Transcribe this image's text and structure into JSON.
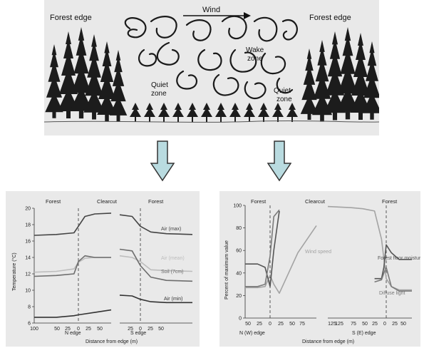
{
  "top": {
    "label_left": "Forest edge",
    "label_right": "Forest edge",
    "wind": "Wind",
    "wake_1": "Wake",
    "wake_2": "zone",
    "quiet_left_1": "Quiet",
    "quiet_left_2": "zone",
    "quiet_right_1": "Quiet",
    "quiet_right_2": "zone"
  },
  "colors": {
    "arrow_fill": "#b9dbe0",
    "arrow_stroke": "#333333"
  },
  "chart_data": [
    {
      "type": "line",
      "region_labels": [
        "Forest",
        "Clearcut",
        "Forest"
      ],
      "ylabel": "Temperature (°C)",
      "xlabel": "Distance from edge (m)",
      "ylim": [
        6,
        20
      ],
      "yticks": [
        "20",
        "18",
        "16",
        "14",
        "12",
        "10",
        "8",
        "6"
      ],
      "xticks_n": [
        "100",
        "50",
        "25",
        "0",
        "25",
        "50"
      ],
      "xticks_s": [
        "25",
        "0",
        "25",
        "50"
      ],
      "edge_n": "N  edge",
      "edge_s": "S  edge",
      "series": [
        {
          "name": "Air (max)",
          "n_x": [
            -100,
            -50,
            -10,
            0,
            10,
            25,
            50
          ],
          "n_y": [
            16.7,
            16.8,
            17.0,
            17.8,
            19.0,
            19.3,
            19.4
          ],
          "s_x": [
            -25,
            -10,
            0,
            10,
            25,
            50
          ],
          "s_y": [
            19.2,
            19.0,
            17.8,
            17.1,
            16.9,
            16.8
          ]
        },
        {
          "name": "Air (mean)",
          "n_x": [
            -100,
            -50,
            -10,
            0,
            10,
            25,
            50
          ],
          "n_y": [
            12.2,
            12.3,
            12.6,
            13.4,
            13.9,
            14.0,
            14.0
          ],
          "s_x": [
            -25,
            -10,
            0,
            10,
            25,
            50
          ],
          "s_y": [
            14.2,
            14.0,
            13.5,
            12.5,
            12.4,
            12.3
          ]
        },
        {
          "name": "Soil (7cm)",
          "n_x": [
            -100,
            -50,
            -10,
            0,
            10,
            25,
            50
          ],
          "n_y": [
            11.7,
            11.8,
            12.0,
            13.5,
            14.2,
            14.0,
            14.0
          ],
          "s_x": [
            -25,
            -10,
            0,
            10,
            25,
            50
          ],
          "s_y": [
            15.0,
            14.8,
            13.0,
            11.6,
            11.2,
            11.1
          ]
        },
        {
          "name": "Air (min)",
          "n_x": [
            -100,
            -50,
            -10,
            0,
            25,
            50
          ],
          "n_y": [
            6.7,
            6.7,
            6.9,
            7.0,
            7.3,
            7.6
          ],
          "s_x": [
            -25,
            -10,
            0,
            10,
            25,
            50
          ],
          "s_y": [
            9.4,
            9.3,
            8.9,
            8.6,
            8.5,
            8.5
          ]
        }
      ]
    },
    {
      "type": "line",
      "region_labels": [
        "Forest",
        "Clearcut",
        "Forest"
      ],
      "ylabel": "Percent of maximum value",
      "xlabel": "Distance from edge (m)",
      "ylim": [
        0,
        100
      ],
      "yticks": [
        "100",
        "80",
        "60",
        "40",
        "20",
        "0"
      ],
      "xticks_n": [
        "50",
        "25",
        "0",
        "25",
        "50",
        "75",
        "125"
      ],
      "xticks_s": [
        "125",
        "75",
        "50",
        "25",
        "0",
        "25",
        "50"
      ],
      "edge_n": "N (W) edge",
      "edge_s": "S  (E)  edge",
      "series": [
        {
          "name": "Wind speed",
          "n_x": [
            -50,
            -25,
            -10,
            0,
            10,
            25,
            50,
            75,
            125
          ],
          "n_y": [
            27,
            27,
            28,
            38,
            30,
            22,
            40,
            58,
            82
          ],
          "s_x": [
            -125,
            -75,
            -50,
            -25,
            -10,
            0,
            10,
            25,
            50
          ],
          "s_y": [
            99,
            98,
            97,
            95,
            70,
            35,
            28,
            25,
            25
          ]
        },
        {
          "name": "Forest floor moisture",
          "n_x": [
            -50,
            -25,
            -10,
            0,
            10,
            25
          ],
          "n_y": [
            48,
            48,
            45,
            28,
            60,
            95
          ],
          "s_x": [
            -25,
            -10,
            -5,
            0,
            10,
            25,
            50
          ],
          "s_y": [
            35,
            35,
            45,
            65,
            58,
            52,
            52
          ]
        },
        {
          "name": "Diffuse light",
          "n_x": [
            -50,
            -25,
            -10,
            0,
            10,
            25
          ],
          "n_y": [
            28,
            28,
            30,
            55,
            90,
            96
          ],
          "s_x": [
            -25,
            -10,
            -5,
            0,
            10,
            25,
            50
          ],
          "s_y": [
            32,
            34,
            40,
            45,
            28,
            24,
            24
          ]
        }
      ]
    }
  ]
}
